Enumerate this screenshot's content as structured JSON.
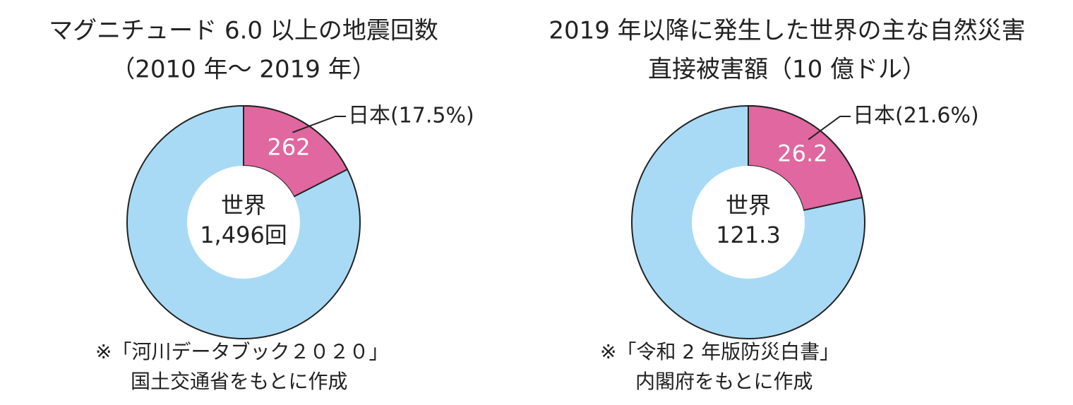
{
  "chart_data": [
    {
      "type": "donut",
      "title": [
        "マグニチュード 6.0 以上の地震回数",
        "（2010 年〜 2019 年）"
      ],
      "total": {
        "name": "世界",
        "value": 1496,
        "value_label": "1,496回",
        "color": "#a9daf5"
      },
      "slice": {
        "value": 262,
        "percent": 17.5,
        "label": "日本(17.5%)",
        "color": "#e0679f"
      },
      "note": [
        "※「河川データブック２０２０」",
        "国土交通省をもとに作成"
      ]
    },
    {
      "type": "donut",
      "title": [
        "2019 年以降に発生した世界の主な自然災害",
        "直接被害額（10 億ドル）"
      ],
      "total": {
        "name": "世界",
        "value": 121.3,
        "color": "#a9daf5"
      },
      "slice": {
        "value": 26.2,
        "percent": 21.6,
        "label": "日本(21.6%)",
        "color": "#e0679f"
      },
      "note": [
        "※「令和 2 年版防災白書」",
        "内閣府をもとに作成"
      ]
    }
  ]
}
